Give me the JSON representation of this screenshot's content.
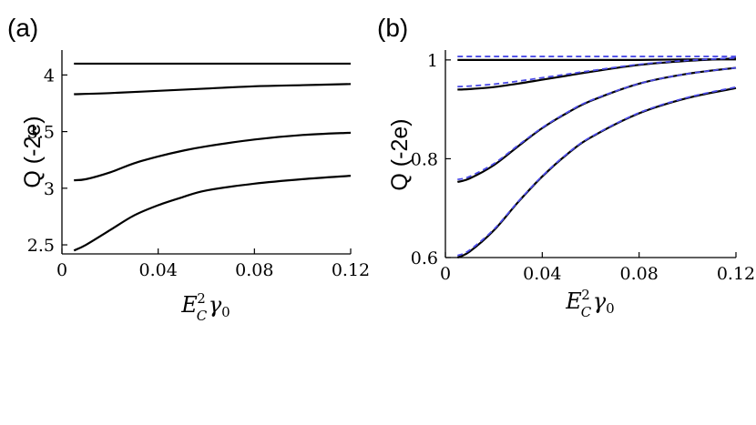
{
  "chart_data": [
    {
      "panel_label": "(a)",
      "type": "line",
      "xlabel": "E_C^2 γ_0",
      "ylabel": "Q (-2e)",
      "xlim": [
        0,
        0.12
      ],
      "ylim": [
        2.42,
        4.22
      ],
      "x_ticks": [
        {
          "value": 0,
          "label": "0"
        },
        {
          "value": 0.04,
          "label": "0.04"
        },
        {
          "value": 0.08,
          "label": "0.08"
        },
        {
          "value": 0.12,
          "label": "0.12"
        }
      ],
      "y_ticks": [
        {
          "value": 2.5,
          "label": "2.5"
        },
        {
          "value": 3,
          "label": "3"
        },
        {
          "value": 3.5,
          "label": "3.5"
        },
        {
          "value": 4,
          "label": "4"
        }
      ],
      "series": [
        {
          "style": "solid",
          "color": "#000000",
          "x": [
            0.005,
            0.02,
            0.04,
            0.06,
            0.08,
            0.1,
            0.12
          ],
          "y": [
            4.1,
            4.1,
            4.1,
            4.1,
            4.1,
            4.1,
            4.1
          ]
        },
        {
          "style": "solid",
          "color": "#000000",
          "x": [
            0.005,
            0.02,
            0.04,
            0.06,
            0.08,
            0.1,
            0.12
          ],
          "y": [
            3.83,
            3.84,
            3.86,
            3.88,
            3.9,
            3.91,
            3.92
          ]
        },
        {
          "style": "solid",
          "color": "#000000",
          "x": [
            0.005,
            0.01,
            0.02,
            0.03,
            0.04,
            0.05,
            0.06,
            0.08,
            0.1,
            0.12
          ],
          "y": [
            3.07,
            3.08,
            3.14,
            3.22,
            3.28,
            3.33,
            3.37,
            3.43,
            3.47,
            3.49
          ]
        },
        {
          "style": "solid",
          "color": "#000000",
          "x": [
            0.005,
            0.01,
            0.02,
            0.03,
            0.04,
            0.05,
            0.06,
            0.08,
            0.1,
            0.12
          ],
          "y": [
            2.45,
            2.5,
            2.63,
            2.76,
            2.85,
            2.92,
            2.98,
            3.04,
            3.08,
            3.11
          ]
        }
      ]
    },
    {
      "panel_label": "(b)",
      "type": "line",
      "xlabel": "E_C^2 γ_0",
      "ylabel": "Q (-2e)",
      "xlim": [
        0,
        0.12
      ],
      "ylim": [
        0.6,
        1.02
      ],
      "x_ticks": [
        {
          "value": 0,
          "label": "0"
        },
        {
          "value": 0.04,
          "label": "0.04"
        },
        {
          "value": 0.08,
          "label": "0.08"
        },
        {
          "value": 0.12,
          "label": "0.12"
        }
      ],
      "y_ticks": [
        {
          "value": 0.6,
          "label": "0.6"
        },
        {
          "value": 0.8,
          "label": "0.8"
        },
        {
          "value": 1,
          "label": "1"
        }
      ],
      "series": [
        {
          "style": "solid",
          "color": "#000000",
          "x": [
            0.005,
            0.02,
            0.04,
            0.06,
            0.08,
            0.1,
            0.12
          ],
          "y": [
            1.0,
            1.0,
            1.0,
            1.0,
            1.0,
            1.001,
            1.001
          ]
        },
        {
          "style": "dashed",
          "color": "#4a4ae6",
          "x": [
            0.005,
            0.02,
            0.04,
            0.06,
            0.08,
            0.1,
            0.12
          ],
          "y": [
            1.007,
            1.007,
            1.007,
            1.007,
            1.007,
            1.007,
            1.007
          ]
        },
        {
          "style": "solid",
          "color": "#000000",
          "x": [
            0.005,
            0.01,
            0.02,
            0.03,
            0.04,
            0.05,
            0.06,
            0.08,
            0.1,
            0.12
          ],
          "y": [
            0.94,
            0.941,
            0.945,
            0.952,
            0.96,
            0.968,
            0.976,
            0.99,
            0.998,
            1.003
          ]
        },
        {
          "style": "dashed",
          "color": "#4a4ae6",
          "x": [
            0.005,
            0.01,
            0.02,
            0.03,
            0.04,
            0.05,
            0.06,
            0.08,
            0.1,
            0.12
          ],
          "y": [
            0.946,
            0.947,
            0.951,
            0.957,
            0.964,
            0.971,
            0.978,
            0.991,
            0.999,
            1.004
          ]
        },
        {
          "style": "solid",
          "color": "#000000",
          "x": [
            0.005,
            0.01,
            0.02,
            0.03,
            0.04,
            0.05,
            0.06,
            0.08,
            0.1,
            0.12
          ],
          "y": [
            0.753,
            0.76,
            0.787,
            0.825,
            0.862,
            0.892,
            0.917,
            0.952,
            0.972,
            0.984
          ]
        },
        {
          "style": "dashed",
          "color": "#4a4ae6",
          "x": [
            0.005,
            0.01,
            0.02,
            0.03,
            0.04,
            0.05,
            0.06,
            0.08,
            0.1,
            0.12
          ],
          "y": [
            0.758,
            0.764,
            0.79,
            0.827,
            0.863,
            0.893,
            0.918,
            0.952,
            0.972,
            0.984
          ]
        },
        {
          "style": "solid",
          "color": "#000000",
          "x": [
            0.005,
            0.01,
            0.02,
            0.03,
            0.04,
            0.05,
            0.06,
            0.08,
            0.1,
            0.12
          ],
          "y": [
            0.6,
            0.612,
            0.655,
            0.712,
            0.764,
            0.808,
            0.843,
            0.892,
            0.923,
            0.943
          ]
        },
        {
          "style": "dashed",
          "color": "#4a4ae6",
          "x": [
            0.005,
            0.01,
            0.02,
            0.03,
            0.04,
            0.05,
            0.06,
            0.08,
            0.1,
            0.12
          ],
          "y": [
            0.604,
            0.615,
            0.657,
            0.713,
            0.765,
            0.809,
            0.844,
            0.893,
            0.924,
            0.945
          ]
        }
      ]
    }
  ]
}
